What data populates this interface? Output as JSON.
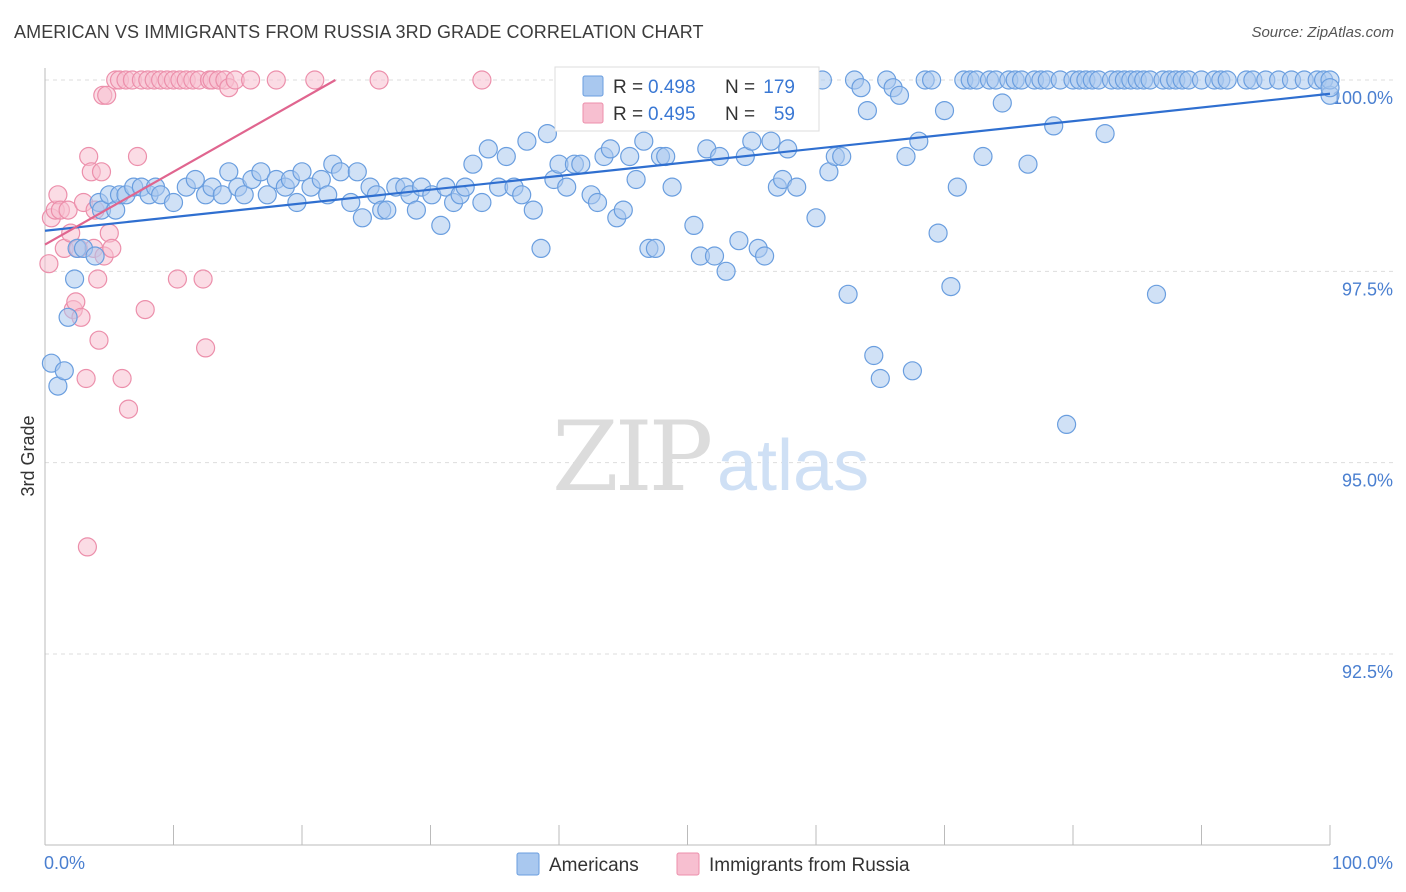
{
  "title": "AMERICAN VS IMMIGRANTS FROM RUSSIA 3RD GRADE CORRELATION CHART",
  "source": "Source: ZipAtlas.com",
  "watermark": {
    "zip": "ZIP",
    "atlas": "atlas"
  },
  "colors": {
    "blue_fill": "#a9c8ef",
    "blue_stroke": "#6a9edf",
    "blue_line": "#2f6fd0",
    "pink_fill": "#f7bfd0",
    "pink_stroke": "#ec8fab",
    "pink_line": "#e0658f",
    "grid": "#dddddd",
    "axis": "#bbbbbb",
    "tick_text": "#4a7fd0"
  },
  "legend": {
    "rows": [
      {
        "r_label": "R =",
        "r_value": "0.498",
        "n_label": "N =",
        "n_value": "179",
        "color": "blue"
      },
      {
        "r_label": "R =",
        "r_value": "0.495",
        "n_label": "N =",
        "n_value": "59",
        "color": "pink"
      }
    ],
    "bottom": [
      {
        "label": "Americans",
        "color": "blue"
      },
      {
        "label": "Immigrants from Russia",
        "color": "pink"
      }
    ]
  },
  "chart_data": {
    "type": "scatter",
    "title": "AMERICAN VS IMMIGRANTS FROM RUSSIA 3RD GRADE CORRELATION CHART",
    "xlabel": "",
    "ylabel": "3rd Grade",
    "xlim": [
      0,
      100
    ],
    "ylim": [
      90.3,
      100.2
    ],
    "x_tick_labels": [
      "0.0%",
      "100.0%"
    ],
    "y_ticks": [
      92.5,
      95.0,
      97.5,
      100.0
    ],
    "y_tick_labels": [
      "92.5%",
      "95.0%",
      "97.5%",
      "100.0%"
    ],
    "grid": "horizontal dashed",
    "legend_position": "top-center",
    "series": [
      {
        "name": "Americans",
        "color": "blue",
        "trend": {
          "x": [
            0,
            100
          ],
          "y": [
            98.03,
            99.82
          ]
        },
        "points": [
          [
            0.5,
            96.3
          ],
          [
            1.0,
            96.0
          ],
          [
            1.5,
            96.2
          ],
          [
            1.8,
            96.9
          ],
          [
            2.3,
            97.4
          ],
          [
            2.5,
            97.8
          ],
          [
            3.0,
            97.8
          ],
          [
            3.9,
            97.7
          ],
          [
            4.2,
            98.4
          ],
          [
            4.4,
            98.3
          ],
          [
            5.0,
            98.5
          ],
          [
            5.5,
            98.3
          ],
          [
            5.8,
            98.5
          ],
          [
            6.3,
            98.5
          ],
          [
            6.9,
            98.6
          ],
          [
            7.5,
            98.6
          ],
          [
            8.1,
            98.5
          ],
          [
            8.6,
            98.6
          ],
          [
            9.0,
            98.5
          ],
          [
            10.0,
            98.4
          ],
          [
            11.0,
            98.6
          ],
          [
            11.7,
            98.7
          ],
          [
            12.5,
            98.5
          ],
          [
            13.0,
            98.6
          ],
          [
            13.8,
            98.5
          ],
          [
            14.3,
            98.8
          ],
          [
            15.0,
            98.6
          ],
          [
            15.5,
            98.5
          ],
          [
            16.1,
            98.7
          ],
          [
            16.8,
            98.8
          ],
          [
            17.3,
            98.5
          ],
          [
            18.0,
            98.7
          ],
          [
            18.7,
            98.6
          ],
          [
            19.1,
            98.7
          ],
          [
            19.6,
            98.4
          ],
          [
            20.0,
            98.8
          ],
          [
            20.7,
            98.6
          ],
          [
            21.5,
            98.7
          ],
          [
            22.0,
            98.5
          ],
          [
            22.4,
            98.9
          ],
          [
            23.0,
            98.8
          ],
          [
            23.8,
            98.4
          ],
          [
            24.3,
            98.8
          ],
          [
            24.7,
            98.2
          ],
          [
            25.3,
            98.6
          ],
          [
            25.8,
            98.5
          ],
          [
            26.2,
            98.3
          ],
          [
            26.6,
            98.3
          ],
          [
            27.3,
            98.6
          ],
          [
            28.0,
            98.6
          ],
          [
            28.4,
            98.5
          ],
          [
            28.9,
            98.3
          ],
          [
            29.3,
            98.6
          ],
          [
            30.1,
            98.5
          ],
          [
            30.8,
            98.1
          ],
          [
            31.2,
            98.6
          ],
          [
            31.8,
            98.4
          ],
          [
            32.3,
            98.5
          ],
          [
            32.7,
            98.6
          ],
          [
            33.3,
            98.9
          ],
          [
            34.0,
            98.4
          ],
          [
            34.5,
            99.1
          ],
          [
            35.3,
            98.6
          ],
          [
            35.9,
            99.0
          ],
          [
            36.5,
            98.6
          ],
          [
            37.1,
            98.5
          ],
          [
            37.5,
            99.2
          ],
          [
            38.0,
            98.3
          ],
          [
            38.6,
            97.8
          ],
          [
            39.1,
            99.3
          ],
          [
            39.6,
            98.7
          ],
          [
            40.0,
            98.9
          ],
          [
            40.6,
            98.6
          ],
          [
            41.2,
            98.9
          ],
          [
            41.7,
            98.9
          ],
          [
            42.5,
            98.5
          ],
          [
            43.0,
            98.4
          ],
          [
            43.5,
            99.0
          ],
          [
            44.0,
            99.1
          ],
          [
            44.5,
            98.2
          ],
          [
            45.0,
            98.3
          ],
          [
            45.5,
            99.0
          ],
          [
            46.0,
            98.7
          ],
          [
            46.6,
            99.2
          ],
          [
            47.0,
            97.8
          ],
          [
            47.5,
            97.8
          ],
          [
            47.9,
            99.0
          ],
          [
            48.3,
            99.0
          ],
          [
            48.8,
            98.6
          ],
          [
            49.5,
            99.9
          ],
          [
            50.0,
            99.9
          ],
          [
            50.5,
            98.1
          ],
          [
            51.0,
            97.7
          ],
          [
            51.5,
            99.1
          ],
          [
            52.1,
            97.7
          ],
          [
            52.5,
            99.0
          ],
          [
            53.0,
            97.5
          ],
          [
            53.5,
            99.5
          ],
          [
            54.0,
            97.9
          ],
          [
            54.5,
            99.0
          ],
          [
            55.0,
            99.2
          ],
          [
            55.5,
            97.8
          ],
          [
            56.0,
            97.7
          ],
          [
            56.5,
            99.2
          ],
          [
            57.0,
            98.6
          ],
          [
            57.4,
            98.7
          ],
          [
            57.8,
            99.1
          ],
          [
            58.5,
            98.6
          ],
          [
            59.0,
            99.9
          ],
          [
            59.5,
            99.7
          ],
          [
            60.0,
            98.2
          ],
          [
            60.5,
            100.0
          ],
          [
            61.0,
            98.8
          ],
          [
            61.5,
            99.0
          ],
          [
            62.0,
            99.0
          ],
          [
            62.5,
            97.2
          ],
          [
            63.0,
            100.0
          ],
          [
            63.5,
            99.9
          ],
          [
            64.0,
            99.6
          ],
          [
            64.5,
            96.4
          ],
          [
            65.0,
            96.1
          ],
          [
            65.5,
            100.0
          ],
          [
            66.0,
            99.9
          ],
          [
            66.5,
            99.8
          ],
          [
            67.0,
            99.0
          ],
          [
            67.5,
            96.2
          ],
          [
            68.0,
            99.2
          ],
          [
            68.5,
            100.0
          ],
          [
            69.0,
            100.0
          ],
          [
            69.5,
            98.0
          ],
          [
            70.0,
            99.6
          ],
          [
            70.5,
            97.3
          ],
          [
            71.0,
            98.6
          ],
          [
            71.5,
            100.0
          ],
          [
            72.0,
            100.0
          ],
          [
            72.5,
            100.0
          ],
          [
            73.0,
            99.0
          ],
          [
            73.5,
            100.0
          ],
          [
            74.0,
            100.0
          ],
          [
            74.5,
            99.7
          ],
          [
            75.0,
            100.0
          ],
          [
            75.5,
            100.0
          ],
          [
            76.0,
            100.0
          ],
          [
            76.5,
            98.9
          ],
          [
            77.0,
            100.0
          ],
          [
            77.5,
            100.0
          ],
          [
            78.0,
            100.0
          ],
          [
            78.5,
            99.4
          ],
          [
            79.0,
            100.0
          ],
          [
            79.5,
            95.5
          ],
          [
            80.0,
            100.0
          ],
          [
            80.5,
            100.0
          ],
          [
            81.0,
            100.0
          ],
          [
            81.5,
            100.0
          ],
          [
            82.0,
            100.0
          ],
          [
            82.5,
            99.3
          ],
          [
            83.0,
            100.0
          ],
          [
            83.5,
            100.0
          ],
          [
            84.0,
            100.0
          ],
          [
            84.5,
            100.0
          ],
          [
            85.0,
            100.0
          ],
          [
            85.5,
            100.0
          ],
          [
            86.0,
            100.0
          ],
          [
            86.5,
            97.2
          ],
          [
            87.0,
            100.0
          ],
          [
            87.5,
            100.0
          ],
          [
            88.0,
            100.0
          ],
          [
            88.5,
            100.0
          ],
          [
            89.0,
            100.0
          ],
          [
            90.0,
            100.0
          ],
          [
            91.0,
            100.0
          ],
          [
            91.5,
            100.0
          ],
          [
            92.0,
            100.0
          ],
          [
            93.5,
            100.0
          ],
          [
            94.0,
            100.0
          ],
          [
            95.0,
            100.0
          ],
          [
            96.0,
            100.0
          ],
          [
            97.0,
            100.0
          ],
          [
            98.0,
            100.0
          ],
          [
            99.0,
            100.0
          ],
          [
            99.5,
            100.0
          ],
          [
            100.0,
            99.8
          ],
          [
            100.0,
            100.0
          ],
          [
            100.0,
            99.9
          ],
          [
            45.8,
            99.9
          ],
          [
            46.3,
            100.0
          ],
          [
            58.0,
            99.8
          ]
        ]
      },
      {
        "name": "Immigrants from Russia",
        "color": "pink",
        "trend": {
          "x": [
            0,
            22.6
          ],
          "y": [
            97.85,
            100.0
          ]
        },
        "points": [
          [
            0.3,
            97.6
          ],
          [
            0.5,
            98.2
          ],
          [
            0.8,
            98.3
          ],
          [
            1.0,
            98.5
          ],
          [
            1.2,
            98.3
          ],
          [
            1.5,
            97.8
          ],
          [
            1.8,
            98.3
          ],
          [
            2.0,
            98.0
          ],
          [
            2.2,
            97.0
          ],
          [
            2.4,
            97.1
          ],
          [
            2.6,
            97.8
          ],
          [
            2.8,
            96.9
          ],
          [
            3.0,
            98.4
          ],
          [
            3.2,
            96.1
          ],
          [
            3.3,
            93.9
          ],
          [
            3.4,
            99.0
          ],
          [
            3.6,
            98.8
          ],
          [
            3.8,
            97.8
          ],
          [
            3.9,
            98.3
          ],
          [
            4.1,
            97.4
          ],
          [
            4.2,
            96.6
          ],
          [
            4.4,
            98.8
          ],
          [
            4.5,
            99.8
          ],
          [
            4.6,
            97.7
          ],
          [
            4.8,
            99.8
          ],
          [
            5.0,
            98.0
          ],
          [
            5.2,
            97.8
          ],
          [
            5.5,
            100.0
          ],
          [
            5.8,
            100.0
          ],
          [
            6.0,
            96.1
          ],
          [
            6.3,
            100.0
          ],
          [
            6.5,
            95.7
          ],
          [
            6.8,
            100.0
          ],
          [
            7.2,
            99.0
          ],
          [
            7.5,
            100.0
          ],
          [
            7.8,
            97.0
          ],
          [
            8.0,
            100.0
          ],
          [
            8.5,
            100.0
          ],
          [
            9.0,
            100.0
          ],
          [
            9.5,
            100.0
          ],
          [
            10.0,
            100.0
          ],
          [
            10.3,
            97.4
          ],
          [
            10.5,
            100.0
          ],
          [
            11.0,
            100.0
          ],
          [
            11.5,
            100.0
          ],
          [
            12.0,
            100.0
          ],
          [
            12.3,
            97.4
          ],
          [
            12.5,
            96.5
          ],
          [
            12.8,
            100.0
          ],
          [
            13.0,
            100.0
          ],
          [
            13.5,
            100.0
          ],
          [
            14.0,
            100.0
          ],
          [
            14.3,
            99.9
          ],
          [
            14.8,
            100.0
          ],
          [
            16.0,
            100.0
          ],
          [
            18.0,
            100.0
          ],
          [
            21.0,
            100.0
          ],
          [
            26.0,
            100.0
          ],
          [
            34.0,
            100.0
          ]
        ]
      }
    ]
  }
}
